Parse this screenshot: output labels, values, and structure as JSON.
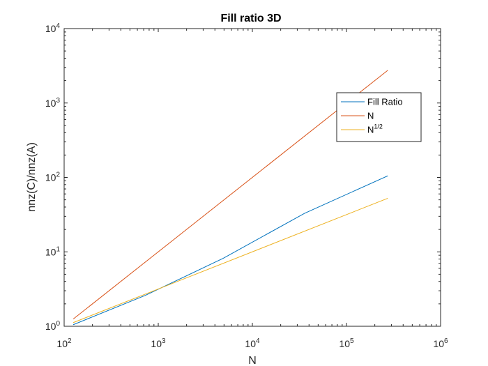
{
  "chart_data": {
    "type": "line",
    "title": "Fill ratio 3D",
    "xlabel": "N",
    "ylabel": "nnz(C)/nnz(A)",
    "xscale": "log",
    "yscale": "log",
    "xlim": [
      100,
      1000000
    ],
    "ylim": [
      1,
      10000
    ],
    "x_ticks": [
      {
        "base": "10",
        "exp": "2",
        "value": 100
      },
      {
        "base": "10",
        "exp": "3",
        "value": 1000
      },
      {
        "base": "10",
        "exp": "4",
        "value": 10000
      },
      {
        "base": "10",
        "exp": "5",
        "value": 100000
      },
      {
        "base": "10",
        "exp": "6",
        "value": 1000000
      }
    ],
    "y_ticks": [
      {
        "base": "10",
        "exp": "0",
        "value": 1
      },
      {
        "base": "10",
        "exp": "1",
        "value": 10
      },
      {
        "base": "10",
        "exp": "2",
        "value": 100
      },
      {
        "base": "10",
        "exp": "3",
        "value": 1000
      },
      {
        "base": "10",
        "exp": "4",
        "value": 10000
      }
    ],
    "grid": false,
    "legend_position": "upper-right",
    "series": [
      {
        "name": "Fill Ratio",
        "color": "#0072BD",
        "x": [
          125,
          729,
          4913,
          35937,
          274625
        ],
        "y": [
          1.05,
          2.6,
          8.2,
          33,
          105
        ]
      },
      {
        "name": "N",
        "color": "#D95319",
        "x": [
          125,
          274625
        ],
        "y": [
          1.25,
          2750
        ]
      },
      {
        "name": "N",
        "name_sup": "1/2",
        "color": "#EDB120",
        "x": [
          125,
          274625
        ],
        "y": [
          1.12,
          52.4
        ]
      }
    ]
  }
}
